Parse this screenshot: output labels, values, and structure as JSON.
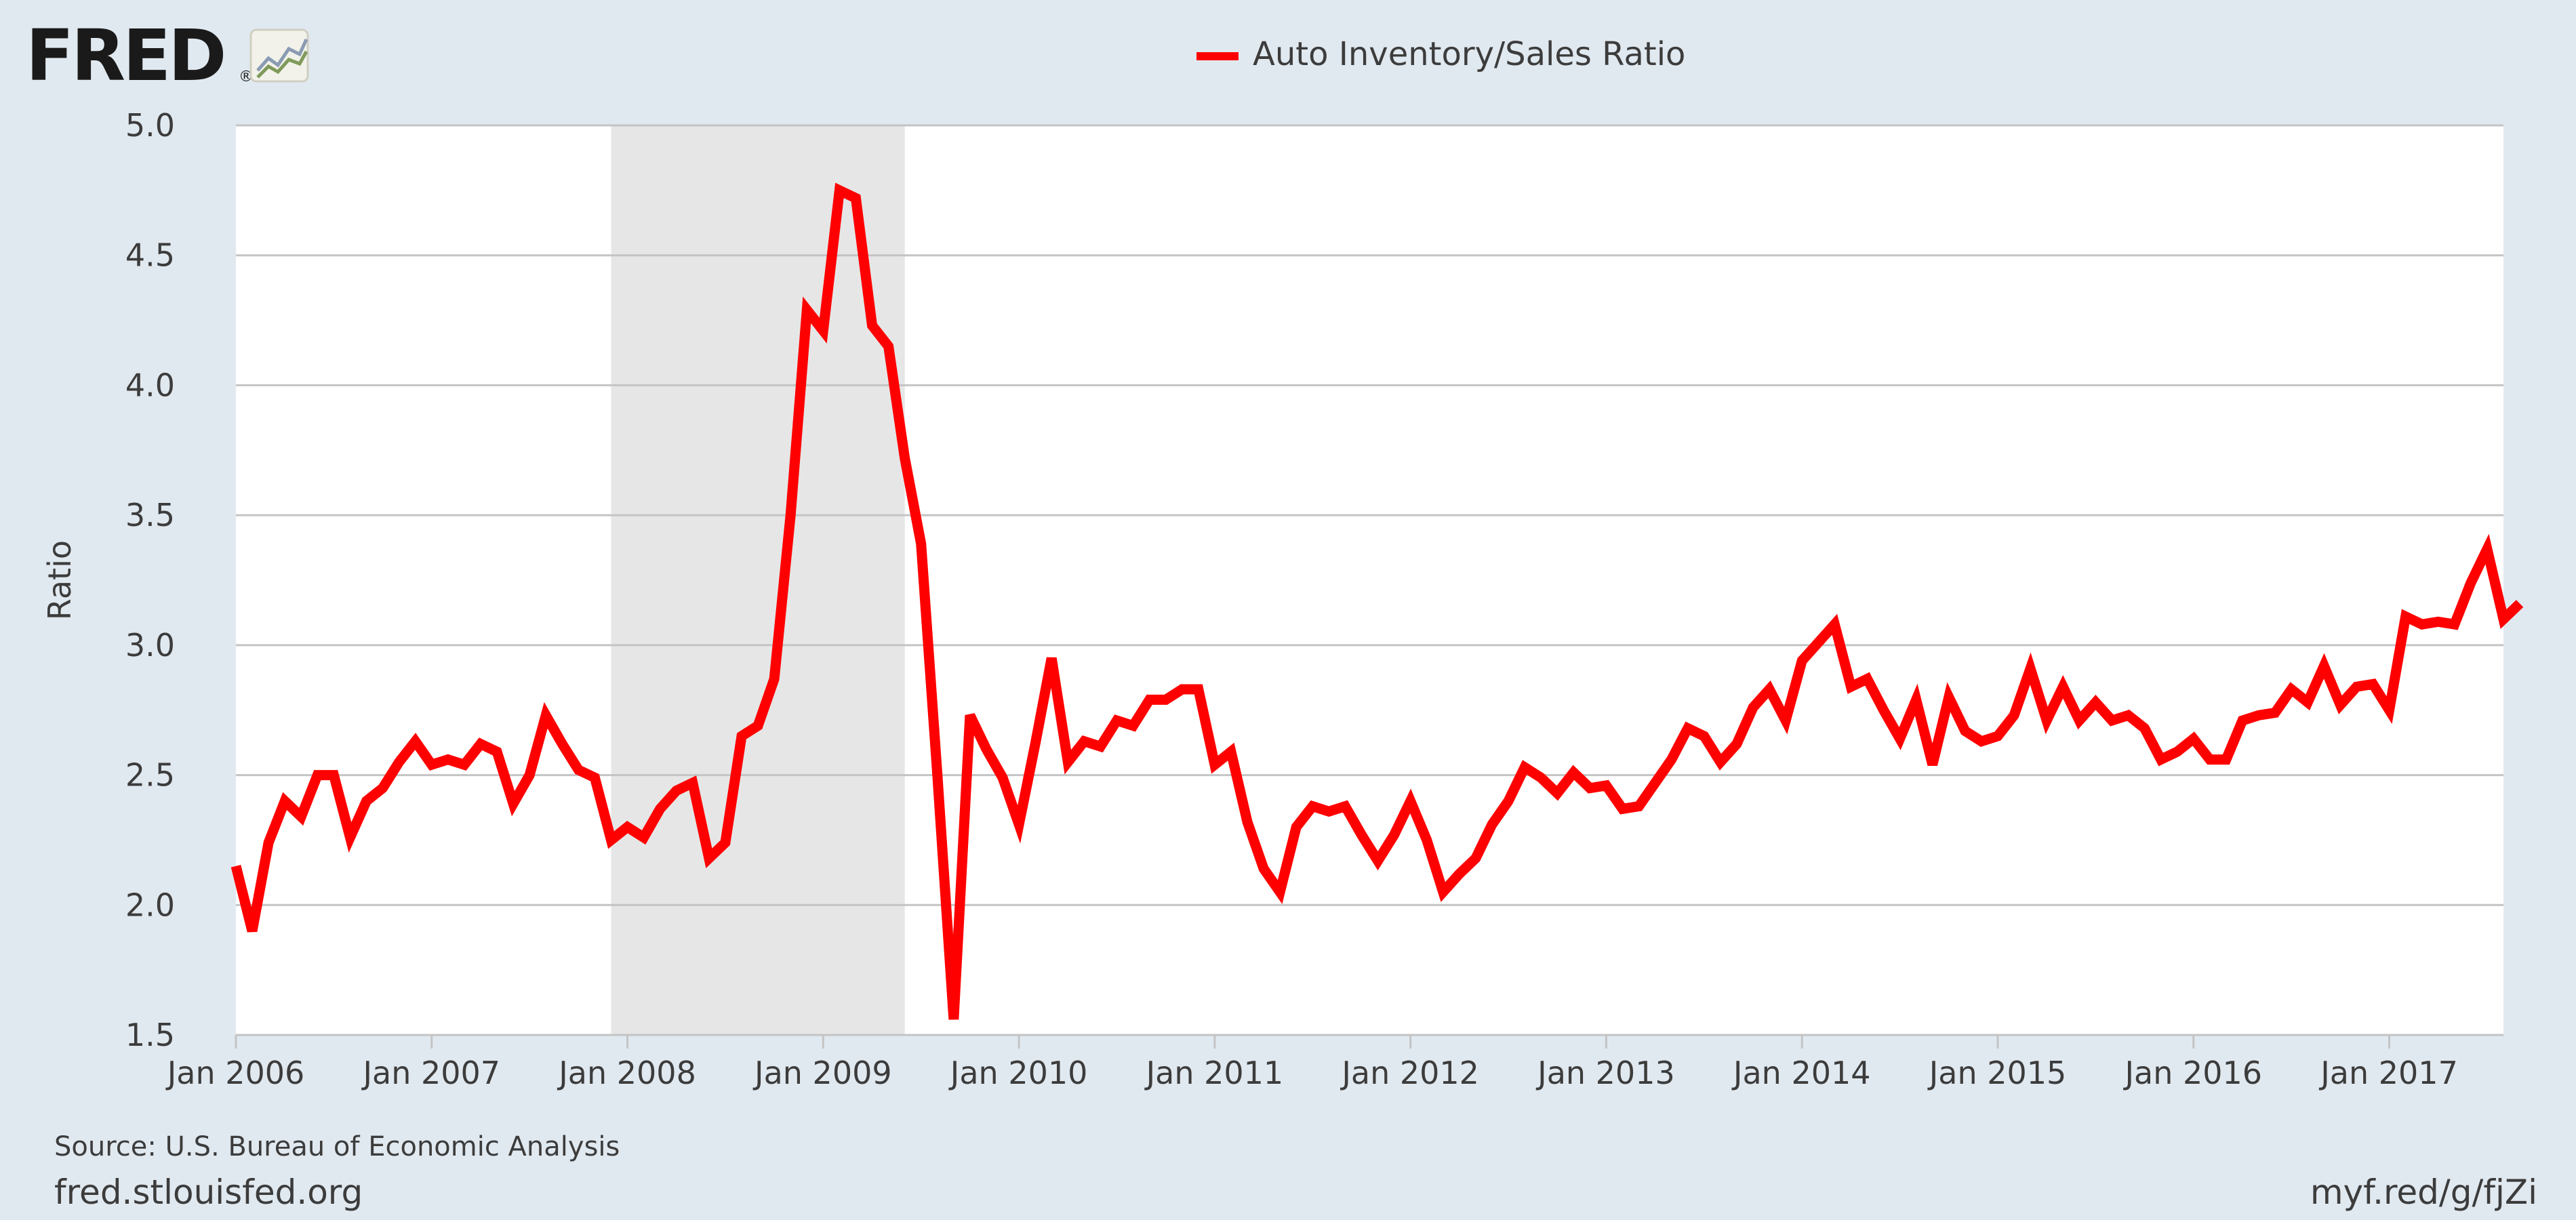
{
  "branding": {
    "logo_text": "FRED",
    "logo_mark": "®",
    "logo_icon": "line-chart-icon"
  },
  "footer": {
    "source": "Source: U.S. Bureau of Economic Analysis",
    "site": "fred.stlouisfed.org",
    "short_link": "myf.red/g/fjZi"
  },
  "colors": {
    "page_background": "#e1e9f0",
    "plot_background": "#ffffff",
    "series": "#ff0000",
    "recession_shade": "#e6e6e6",
    "grid": "#c4c4c4",
    "text": "#3c3c3c"
  },
  "chart_data": {
    "type": "line",
    "title": "",
    "xlabel": "",
    "ylabel": "Ratio",
    "ylim": [
      1.5,
      5.0
    ],
    "yticks": [
      "1.5",
      "2.0",
      "2.5",
      "3.0",
      "3.5",
      "4.0",
      "4.5",
      "5.0"
    ],
    "xlim": [
      "2006-01",
      "2017-08"
    ],
    "xticks": [
      "Jan 2006",
      "Jan 2007",
      "Jan 2008",
      "Jan 2009",
      "Jan 2010",
      "Jan 2011",
      "Jan 2012",
      "Jan 2013",
      "Jan 2014",
      "Jan 2015",
      "Jan 2016",
      "Jan 2017"
    ],
    "grid": true,
    "legend": "top-center",
    "recessions": [
      {
        "start": "2007-12",
        "end": "2009-06"
      }
    ],
    "series": [
      {
        "name": "Auto Inventory/Sales Ratio",
        "start": "2006-01",
        "frequency": "monthly",
        "values": [
          2.15,
          1.9,
          2.24,
          2.4,
          2.34,
          2.5,
          2.5,
          2.26,
          2.4,
          2.45,
          2.55,
          2.63,
          2.54,
          2.56,
          2.54,
          2.62,
          2.59,
          2.39,
          2.5,
          2.73,
          2.62,
          2.52,
          2.49,
          2.25,
          2.3,
          2.26,
          2.37,
          2.44,
          2.47,
          2.18,
          2.24,
          2.65,
          2.69,
          2.87,
          3.5,
          4.29,
          4.21,
          4.75,
          4.72,
          4.23,
          4.15,
          3.72,
          3.39,
          2.5,
          1.56,
          2.73,
          2.6,
          2.49,
          2.31,
          2.62,
          2.95,
          2.55,
          2.63,
          2.61,
          2.71,
          2.69,
          2.79,
          2.79,
          2.83,
          2.83,
          2.54,
          2.59,
          2.32,
          2.14,
          2.05,
          2.3,
          2.38,
          2.36,
          2.38,
          2.27,
          2.17,
          2.27,
          2.4,
          2.25,
          2.05,
          2.12,
          2.18,
          2.31,
          2.4,
          2.53,
          2.49,
          2.43,
          2.51,
          2.45,
          2.46,
          2.37,
          2.38,
          2.47,
          2.56,
          2.68,
          2.65,
          2.55,
          2.62,
          2.76,
          2.83,
          2.71,
          2.94,
          3.01,
          3.08,
          2.84,
          2.87,
          2.75,
          2.64,
          2.79,
          2.54,
          2.8,
          2.67,
          2.63,
          2.65,
          2.73,
          2.91,
          2.71,
          2.84,
          2.71,
          2.78,
          2.71,
          2.73,
          2.68,
          2.56,
          2.59,
          2.64,
          2.56,
          2.56,
          2.71,
          2.73,
          2.74,
          2.83,
          2.78,
          2.92,
          2.77,
          2.84,
          2.85,
          2.75,
          3.11,
          3.08,
          3.09,
          3.08,
          3.24,
          3.37,
          3.1,
          3.16
        ]
      }
    ]
  }
}
